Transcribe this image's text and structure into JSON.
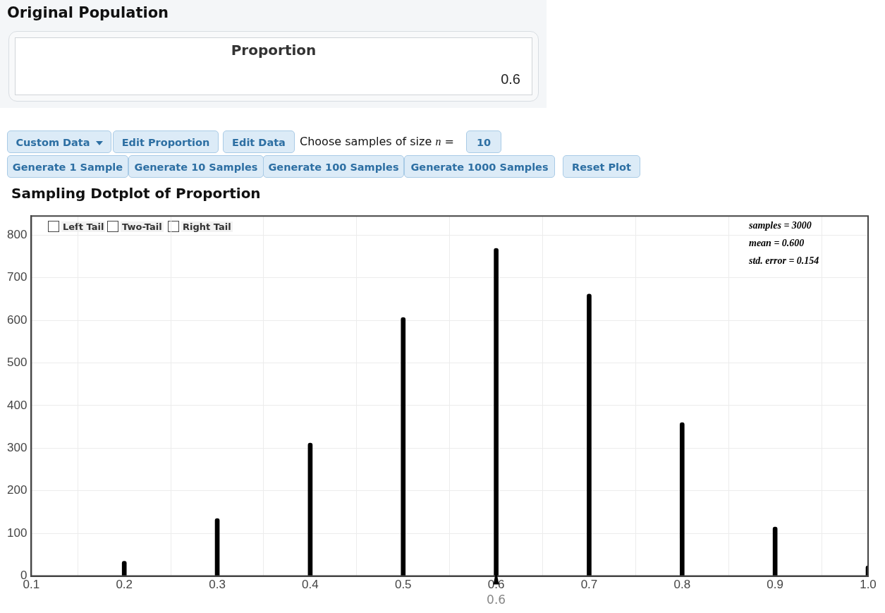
{
  "chart_data": [
    {
      "type": "other",
      "title": "Original Population",
      "annotations": [
        "Proportion",
        "0.6"
      ]
    },
    {
      "type": "bar",
      "title": "Sampling Dotplot of Proportion",
      "x": [
        0.2,
        0.3,
        0.4,
        0.5,
        0.6,
        0.7,
        0.8,
        0.9,
        1.0
      ],
      "values": [
        35,
        135,
        312,
        607,
        769,
        662,
        360,
        115,
        24
      ],
      "color": "#000000",
      "xlim": [
        0.1,
        1.0
      ],
      "xticks": [
        0.1,
        0.2,
        0.3,
        0.4,
        0.5,
        0.6,
        0.7,
        0.8,
        0.9,
        {
          "value": 1.0,
          "label": "1.0"
        }
      ],
      "ylim": [
        0,
        845
      ],
      "yticks": [
        0,
        100,
        200,
        300,
        400,
        500,
        600,
        700,
        800
      ],
      "grid": true,
      "legend": false,
      "annotations": [
        "Custom Data",
        "Edit Proportion",
        "Edit Data",
        "Choose samples of size n =",
        "10",
        "Generate 1 Sample",
        "Generate 10 Samples",
        "Generate 100 Samples",
        "Generate 1000 Samples",
        "Reset Plot",
        "Left Tail",
        "Two-Tail",
        "Right Tail",
        "samples = 3000",
        "mean = 0.600",
        "std. error = 0.154",
        {
          "text": "0.6",
          "x": 0.6,
          "y": 0
        }
      ]
    }
  ]
}
